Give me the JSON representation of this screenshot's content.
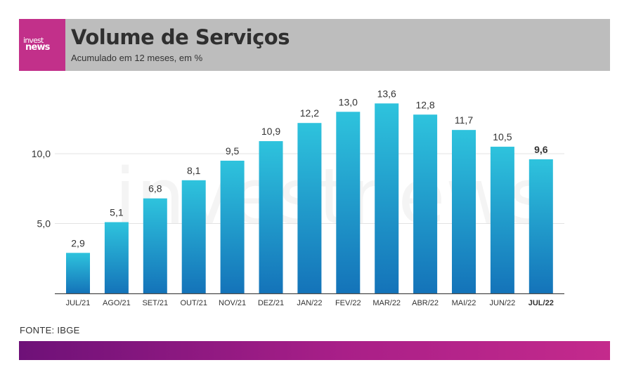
{
  "header": {
    "logo_line1": "invest",
    "logo_line2": "news",
    "title": "Volume de Serviços",
    "subtitle": "Acumulado em 12 meses, em %"
  },
  "watermark": "investnews",
  "source": "FONTE: IBGE",
  "colors": {
    "header_bg": "#bdbdbd",
    "brand": "#c2308a",
    "bar_top": "#2ec3dd",
    "bar_bottom": "#1473b9",
    "footer_start": "#6e1178",
    "footer_end": "#c42a8c"
  },
  "chart_data": {
    "type": "bar",
    "title": "Volume de Serviços",
    "subtitle": "Acumulado em 12 meses, em %",
    "categories": [
      "JUL/21",
      "AGO/21",
      "SET/21",
      "OUT/21",
      "NOV/21",
      "DEZ/21",
      "JAN/22",
      "FEV/22",
      "MAR/22",
      "ABR/22",
      "MAI/22",
      "JUN/22",
      "JUL/22"
    ],
    "values": [
      2.9,
      5.1,
      6.8,
      8.1,
      9.5,
      10.9,
      12.2,
      13.0,
      13.6,
      12.8,
      11.7,
      10.5,
      9.6
    ],
    "value_labels": [
      "2,9",
      "5,1",
      "6,8",
      "8,1",
      "9,5",
      "10,9",
      "12,2",
      "13,0",
      "13,6",
      "12,8",
      "11,7",
      "10,5",
      "9,6"
    ],
    "highlight_index": 12,
    "yticks": [
      5.0,
      10.0
    ],
    "ytick_labels": [
      "5,0",
      "10,0"
    ],
    "ylim": [
      0,
      15
    ],
    "grid": true,
    "legend": "none"
  }
}
